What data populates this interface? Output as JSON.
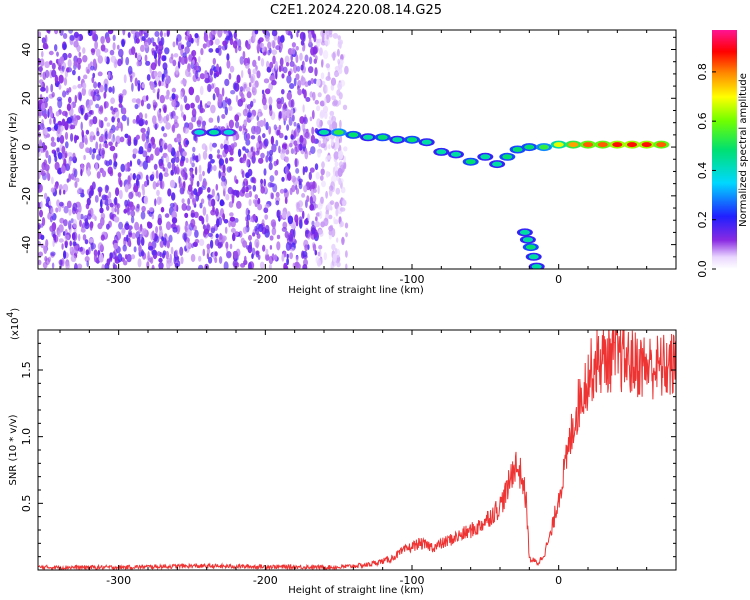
{
  "title": "C2E1.2024.220.08.14.G25",
  "chart_data": [
    {
      "type": "heatmap",
      "xlabel": "Height of straight line (km)",
      "ylabel": "Frequency (Hz)",
      "xlim": [
        -355,
        80
      ],
      "ylim": [
        -50,
        48
      ],
      "xticks": [
        -300,
        -200,
        -100,
        0
      ],
      "xtick_labels": [
        "-300",
        "-200",
        "-100",
        "0"
      ],
      "yticks": [
        -40,
        -20,
        0,
        20,
        40
      ],
      "ytick_labels": [
        "-40",
        "-20",
        "0",
        "20",
        "40"
      ],
      "colorbar": {
        "label": "Normalized spectral amplitude",
        "range": [
          0,
          0.97
        ],
        "ticks": [
          0.0,
          0.2,
          0.4,
          0.6,
          0.8
        ],
        "tick_labels": [
          "0.0",
          "0.2",
          "0.4",
          "0.6",
          "0.8"
        ]
      },
      "ridge": [
        {
          "x": -245,
          "y": 6,
          "v": 0.4
        },
        {
          "x": -235,
          "y": 6,
          "v": 0.45
        },
        {
          "x": -225,
          "y": 6,
          "v": 0.4
        },
        {
          "x": -160,
          "y": 6,
          "v": 0.45
        },
        {
          "x": -150,
          "y": 6,
          "v": 0.55
        },
        {
          "x": -140,
          "y": 5,
          "v": 0.5
        },
        {
          "x": -130,
          "y": 4,
          "v": 0.45
        },
        {
          "x": -120,
          "y": 4,
          "v": 0.5
        },
        {
          "x": -110,
          "y": 3,
          "v": 0.45
        },
        {
          "x": -100,
          "y": 3,
          "v": 0.5
        },
        {
          "x": -90,
          "y": 2,
          "v": 0.45
        },
        {
          "x": -80,
          "y": -2,
          "v": 0.45
        },
        {
          "x": -70,
          "y": -3,
          "v": 0.45
        },
        {
          "x": -60,
          "y": -6,
          "v": 0.5
        },
        {
          "x": -50,
          "y": -4,
          "v": 0.45
        },
        {
          "x": -42,
          "y": -7,
          "v": 0.45
        },
        {
          "x": -35,
          "y": -4,
          "v": 0.5
        },
        {
          "x": -28,
          "y": -1,
          "v": 0.5
        },
        {
          "x": -20,
          "y": 0,
          "v": 0.5
        },
        {
          "x": -10,
          "y": 0,
          "v": 0.55
        },
        {
          "x": 0,
          "y": 1,
          "v": 0.7
        },
        {
          "x": 10,
          "y": 1,
          "v": 0.8
        },
        {
          "x": 20,
          "y": 1,
          "v": 0.85
        },
        {
          "x": 30,
          "y": 1,
          "v": 0.85
        },
        {
          "x": 40,
          "y": 1,
          "v": 0.9
        },
        {
          "x": 50,
          "y": 1,
          "v": 0.9
        },
        {
          "x": 60,
          "y": 1,
          "v": 0.9
        },
        {
          "x": 70,
          "y": 1,
          "v": 0.85
        }
      ],
      "branch": [
        {
          "x": -23,
          "y": -35,
          "v": 0.45
        },
        {
          "x": -21,
          "y": -38,
          "v": 0.45
        },
        {
          "x": -19,
          "y": -41,
          "v": 0.5
        },
        {
          "x": -17,
          "y": -45,
          "v": 0.45
        },
        {
          "x": -15,
          "y": -49,
          "v": 0.45
        }
      ]
    },
    {
      "type": "line",
      "xlabel": "Height of straight line (km)",
      "ylabel": "SNR (10 * v/v)",
      "y_multiplier": "(x10",
      "y_multiplier_exp": "4",
      "y_multiplier_close": ")",
      "xlim": [
        -355,
        80
      ],
      "ylim": [
        0,
        18000
      ],
      "xticks": [
        -300,
        -200,
        -100,
        0
      ],
      "xtick_labels": [
        "-300",
        "-200",
        "-100",
        "0"
      ],
      "yticks": [
        5000,
        10000,
        15000
      ],
      "ytick_labels": [
        "0.5",
        "1.0",
        "1.5"
      ],
      "color": "#ee3333",
      "x": [
        -355,
        -300,
        -250,
        -200,
        -150,
        -130,
        -115,
        -105,
        -95,
        -85,
        -75,
        -65,
        -55,
        -45,
        -40,
        -35,
        -30,
        -25,
        -22,
        -20,
        -17,
        -14,
        -10,
        -5,
        0,
        5,
        10,
        15,
        20,
        25,
        30,
        40,
        50,
        60,
        70,
        80
      ],
      "y": [
        200,
        200,
        300,
        250,
        200,
        400,
        800,
        1500,
        2000,
        1700,
        2200,
        2700,
        3200,
        4200,
        4800,
        6000,
        8000,
        7000,
        5000,
        800,
        700,
        500,
        1200,
        2800,
        5500,
        8000,
        11000,
        13000,
        14500,
        15500,
        15800,
        16000,
        15500,
        15300,
        15200,
        15400
      ]
    }
  ]
}
